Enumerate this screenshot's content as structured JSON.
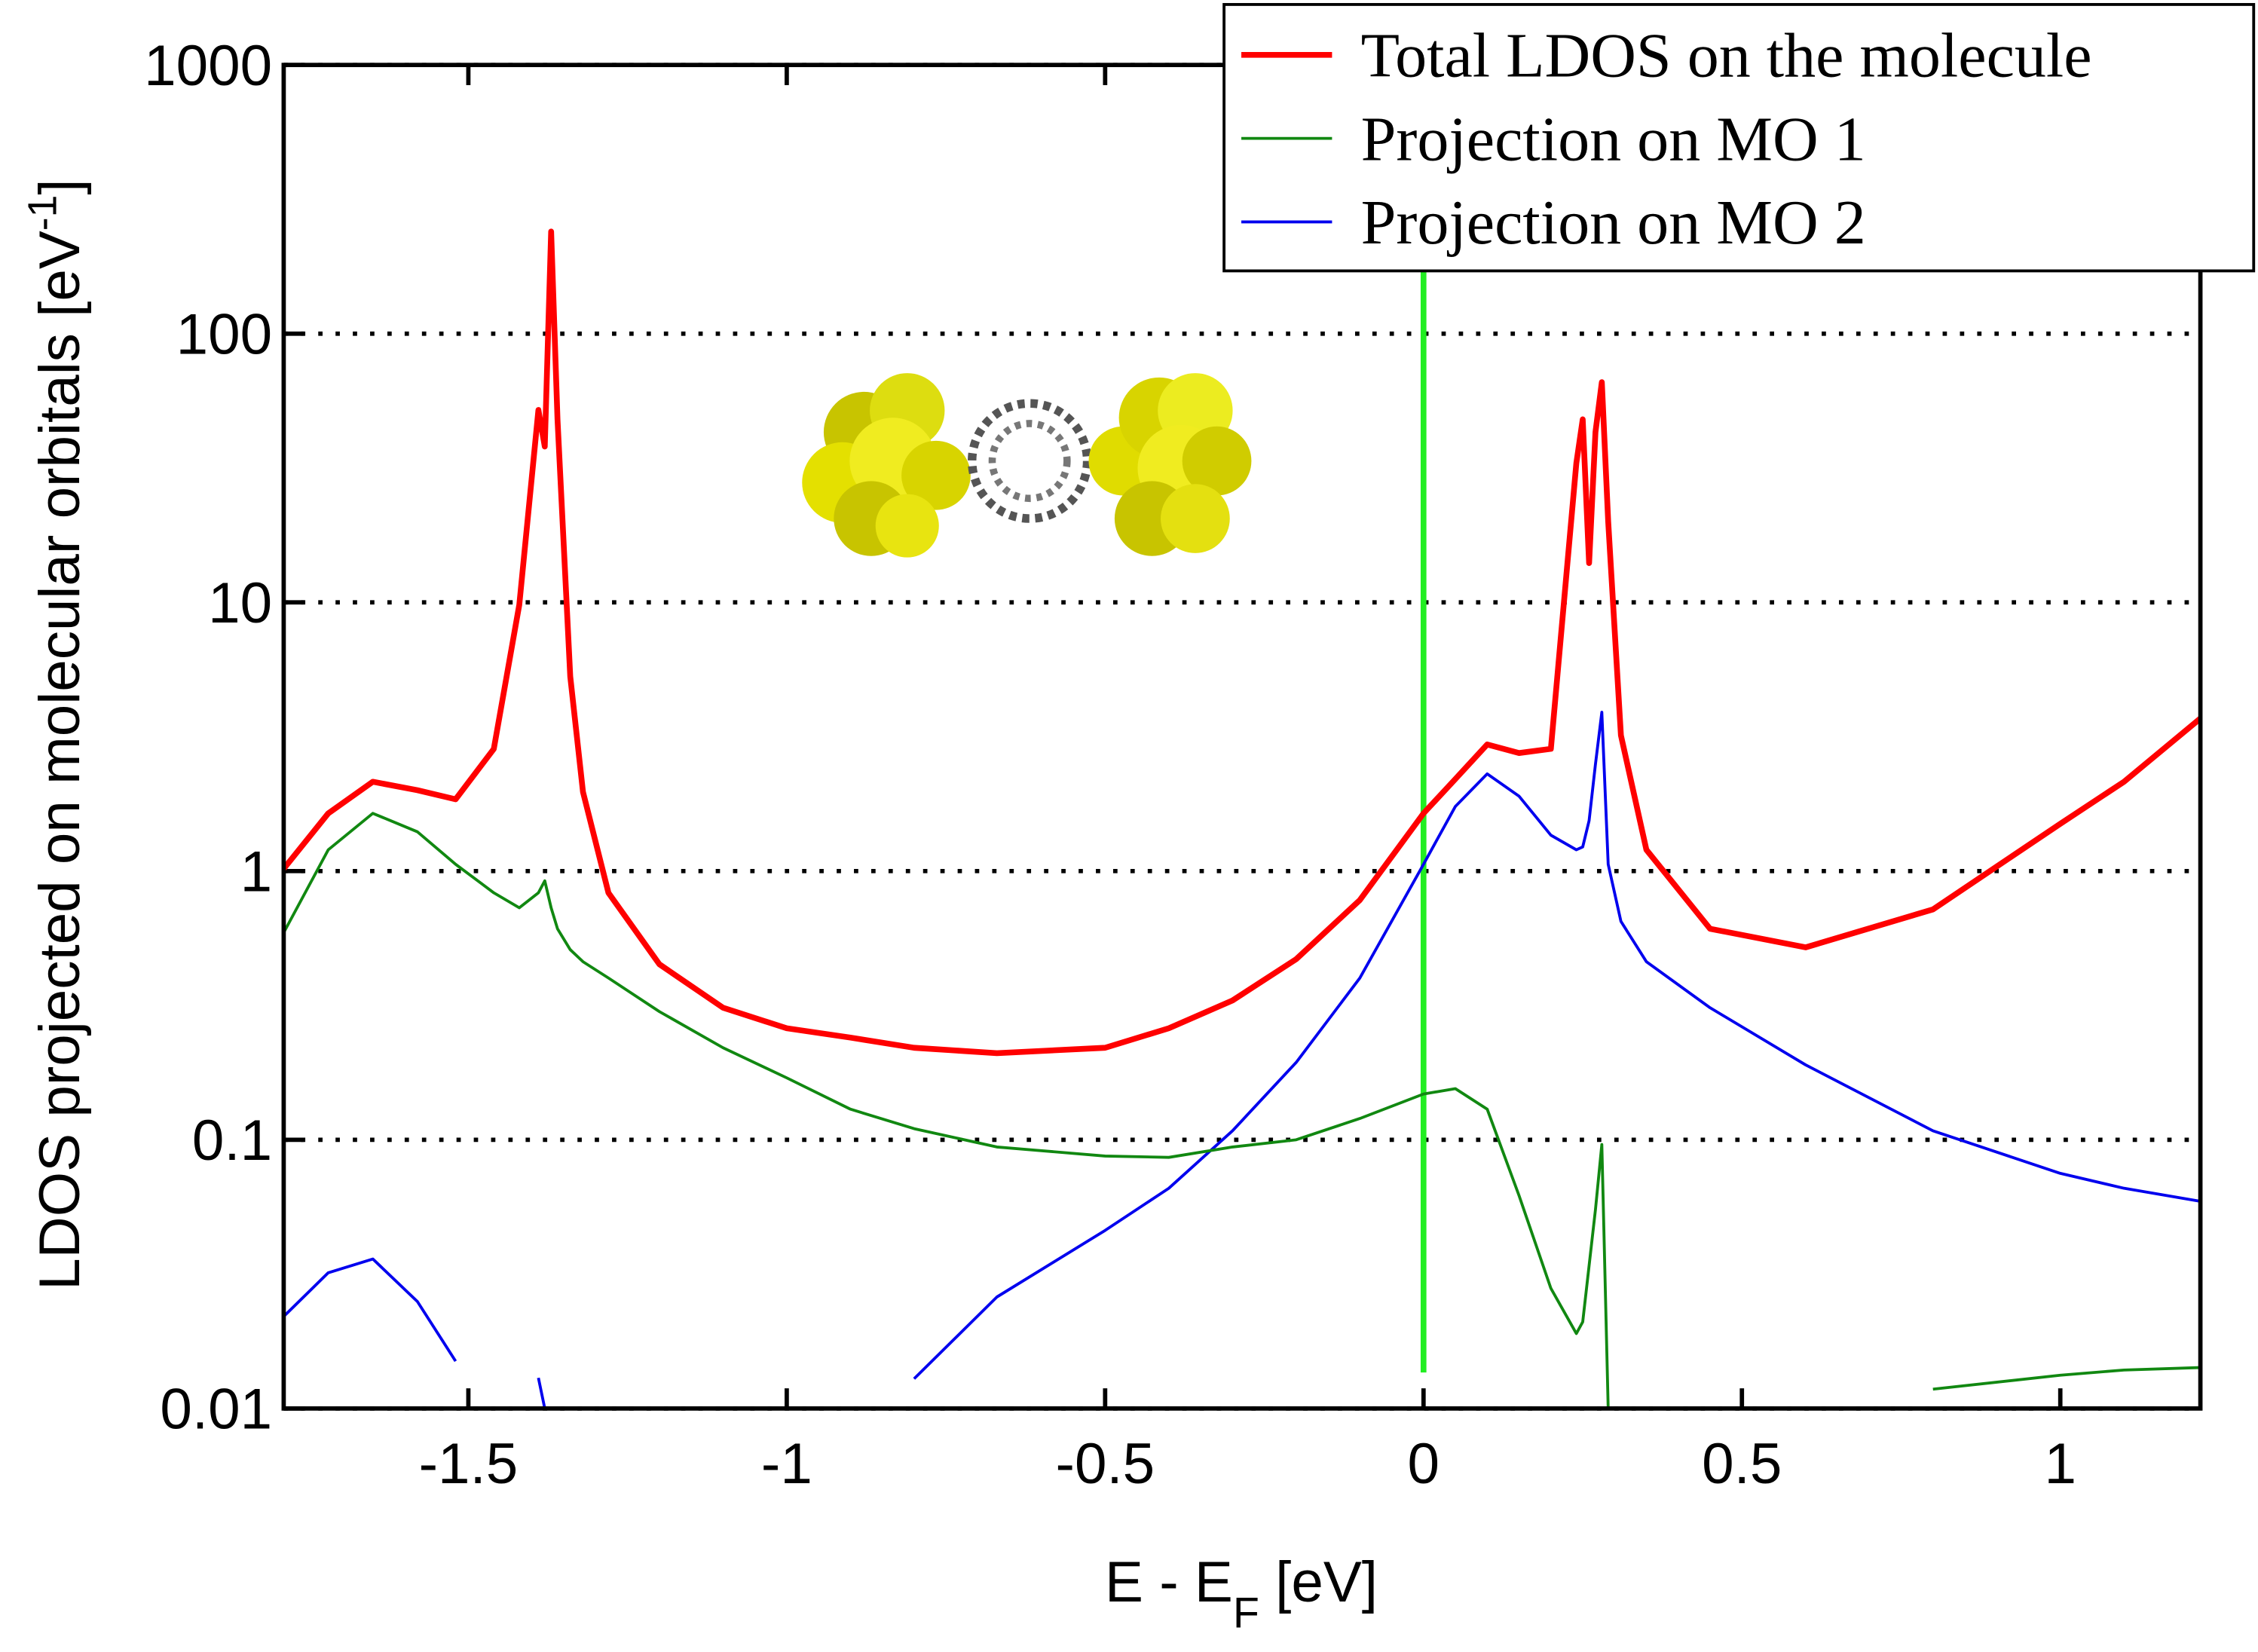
{
  "chart_data": {
    "type": "line",
    "xlabel": [
      "E - E",
      "F",
      " [eV]"
    ],
    "ylabel": [
      "LDOS projected on molecular orbitals [eV",
      "-1",
      "]"
    ],
    "log_y": true,
    "grid": true,
    "legend": "upper right",
    "vline": 0,
    "vline_color": "#22ee22",
    "xlim": [
      -1.79,
      1.22
    ],
    "xticks": [
      -1.5,
      -1,
      -0.5,
      0,
      0.5,
      1
    ],
    "ylim": [
      0.01,
      1000
    ],
    "yticks": [
      0.01,
      0.1,
      1,
      10,
      100,
      1000
    ],
    "x": [
      -1.79,
      -1.72,
      -1.65,
      -1.58,
      -1.52,
      -1.46,
      -1.42,
      -1.39,
      -1.38,
      -1.37,
      -1.36,
      -1.34,
      -1.32,
      -1.28,
      -1.2,
      -1.1,
      -1.0,
      -0.9,
      -0.8,
      -0.67,
      -0.5,
      -0.4,
      -0.3,
      -0.2,
      -0.1,
      0,
      0.05,
      0.1,
      0.15,
      0.2,
      0.24,
      0.25,
      0.26,
      0.27,
      0.28,
      0.29,
      0.31,
      0.35,
      0.45,
      0.6,
      0.8,
      1.0,
      1.1,
      1.22
    ],
    "series": [
      {
        "name": "Total LDOS on the molecule",
        "color": "#ff0000",
        "width": 4,
        "values": [
          1.02,
          1.64,
          2.15,
          2.0,
          1.85,
          2.85,
          9.8,
          52,
          38,
          240,
          48,
          5.3,
          1.97,
          0.83,
          0.45,
          0.31,
          0.26,
          0.24,
          0.22,
          0.21,
          0.22,
          0.26,
          0.33,
          0.47,
          0.78,
          1.64,
          2.2,
          2.96,
          2.75,
          2.85,
          33,
          48,
          14,
          43,
          66,
          20,
          3.2,
          1.2,
          0.61,
          0.52,
          0.72,
          1.5,
          2.15,
          3.7
        ]
      },
      {
        "name": "Projection on MO 1",
        "color": "#118811",
        "width": 2,
        "values": [
          0.59,
          1.2,
          1.64,
          1.4,
          1.06,
          0.83,
          0.73,
          0.83,
          0.92,
          0.73,
          0.61,
          0.51,
          0.46,
          0.4,
          0.3,
          0.22,
          0.17,
          0.13,
          0.11,
          0.094,
          0.087,
          0.086,
          0.094,
          0.1,
          0.12,
          0.148,
          0.155,
          0.13,
          0.062,
          0.028,
          0.019,
          0.021,
          0.034,
          0.055,
          0.096,
          0.01,
          null,
          null,
          null,
          null,
          0.0118,
          0.0133,
          0.0139,
          0.0142
        ]
      },
      {
        "name": "Projection on MO 2",
        "color": "#0000ee",
        "width": 2,
        "values": [
          0.022,
          0.032,
          0.036,
          0.025,
          0.015,
          null,
          null,
          0.013,
          0.01,
          null,
          null,
          null,
          null,
          null,
          null,
          null,
          null,
          null,
          0.0129,
          0.026,
          0.046,
          0.066,
          0.108,
          0.194,
          0.4,
          1.06,
          1.74,
          2.3,
          1.9,
          1.36,
          1.2,
          1.23,
          1.54,
          2.5,
          3.9,
          1.06,
          0.65,
          0.46,
          0.31,
          0.19,
          0.108,
          0.075,
          0.066,
          0.059
        ]
      }
    ]
  }
}
